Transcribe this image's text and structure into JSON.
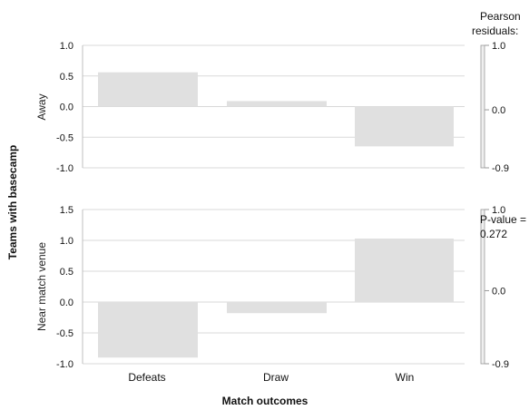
{
  "chart_data": {
    "type": "bar",
    "categories": [
      "Defeats",
      "Draw",
      "Win"
    ],
    "xlabel": "Match outcomes",
    "ylabel": "Teams with basecamp",
    "panels": [
      {
        "name": "Away",
        "values": [
          0.56,
          0.09,
          -0.65
        ],
        "ylim": [
          -1.0,
          1.0
        ],
        "ticks": [
          "1.0",
          "0.5",
          "0.0",
          "-0.5",
          "-1.0"
        ],
        "tick_values": [
          1.0,
          0.5,
          0.0,
          -0.5,
          -1.0
        ]
      },
      {
        "name": "Near match venue",
        "values": [
          -0.9,
          -0.18,
          1.03
        ],
        "ylim": [
          -1.0,
          1.5
        ],
        "ticks": [
          "1.5",
          "1.0",
          "0.5",
          "0.0",
          "-0.5",
          "-1.0"
        ],
        "tick_values": [
          1.5,
          1.0,
          0.5,
          0.0,
          -0.5,
          -1.0
        ]
      }
    ],
    "legend": {
      "title_line1": "Pearson",
      "title_line2": "residuals:",
      "scale_labels": [
        "1.0",
        "0.0",
        "-0.9"
      ],
      "scale_values": [
        1.0,
        0.0,
        -0.9
      ]
    },
    "annotation_line1": "P-value =",
    "annotation_line2": "0.272",
    "grid": true
  }
}
